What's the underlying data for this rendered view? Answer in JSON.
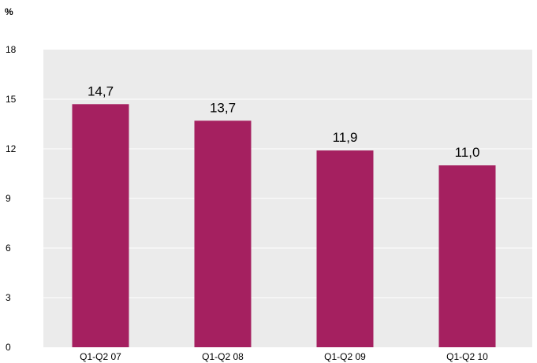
{
  "chart_data": {
    "type": "bar",
    "title": "",
    "unit_label": "%",
    "xlabel": "",
    "ylabel": "",
    "categories": [
      "Q1-Q2 07",
      "Q1-Q2 08",
      "Q1-Q2 09",
      "Q1-Q2 10"
    ],
    "values": [
      14.7,
      13.7,
      11.9,
      11.0
    ],
    "data_labels": [
      "14,7",
      "13,7",
      "11,9",
      "11,0"
    ],
    "ylim": [
      0,
      18
    ],
    "yticks": [
      0,
      3,
      6,
      9,
      12,
      15,
      18
    ],
    "grid": true,
    "legend": "none",
    "colors": {
      "bar": "#A52060",
      "plot_background": "#EBEBEB",
      "gridline": "#FFFFFF"
    }
  }
}
